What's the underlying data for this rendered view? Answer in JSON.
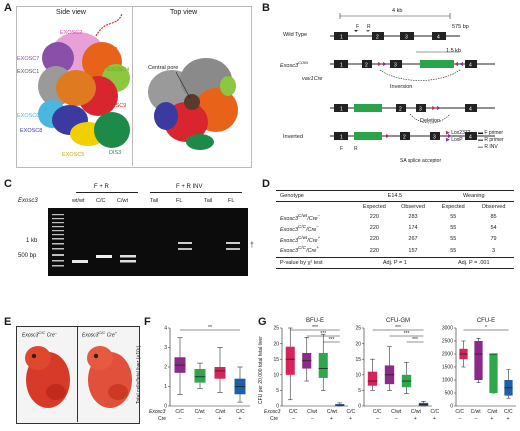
{
  "panels": {
    "A": {
      "letter": "A",
      "side_view": "Side view",
      "top_view": "Top view",
      "labels": {
        "exosc2": "EXOSC2",
        "exosc7": "EXOSC7",
        "exosc1": "EXOSC1",
        "exosc3": "EXOSC3",
        "exosc4": "EXOSC4",
        "exosc9": "EXOSC9",
        "exosc6": "EXOSC6",
        "exosc8": "EXOSC8",
        "exosc5": "EXOSC5",
        "dis3": "DIS3",
        "central_pore": "Central pore"
      },
      "colors": {
        "exosc2": "#e8a0d8",
        "exosc7": "#8a4fa8",
        "exosc1": "#9a9a9a",
        "exosc3": "#e8621a",
        "exosc4": "#8dc63f",
        "exosc9": "#d9262e",
        "exosc6": "#49b7e0",
        "exosc8": "#3a3aa0",
        "exosc5": "#f0d000",
        "dis3": "#1e8a4a"
      }
    },
    "B": {
      "letter": "B",
      "scale_4kb": "4 kb",
      "scale_575bp": "575 bp",
      "scale_15kb": "1.5 kb",
      "wild_type": "Wild Type",
      "coin_allele": "Exosc3",
      "coin_sup": "COIN",
      "vav_cre": "vav1Cre",
      "inversion": "Inversion",
      "deletion": "Deletion",
      "inverted": "Inverted",
      "sa": "SA",
      "exons": [
        "1",
        "2",
        "3",
        "4"
      ],
      "primer_f": "F",
      "primer_r": "R",
      "legend": {
        "lox2372": "Lox2372",
        "loxp": "LoxP",
        "f_primer": "F primer",
        "r_primer": "R primer",
        "r_inv": "R INV",
        "sa_acceptor": "SA splice acceptor"
      },
      "colors": {
        "lox2372": "#c0304a",
        "loxp": "#7a3a9a",
        "gfp": "#2aa34a"
      }
    },
    "C": {
      "letter": "C",
      "group_fr": "F + R",
      "group_frinv": "F + R INV",
      "row_label": "Exosc3",
      "lanes": [
        "wt/wt",
        "C/C",
        "C/wt",
        "Tail",
        "FL",
        "Tail",
        "FL"
      ],
      "marker_1kb": "1 kb",
      "marker_500bp": "500 bp",
      "dagger": "†"
    },
    "D": {
      "letter": "D",
      "headers": {
        "genotype": "Genotype",
        "e145": "E14.5",
        "weaning": "Weaning",
        "expected": "Expected",
        "observed": "Observed"
      },
      "rows": [
        {
          "genotype": "Exosc3",
          "sup": "C/wt",
          "cre": "/Cre",
          "cre_sup": "–",
          "e_exp": "220",
          "e_obs": "283",
          "w_exp": "55",
          "w_obs": "85"
        },
        {
          "genotype": "Exosc3",
          "sup": "C/C",
          "cre": "/Cre",
          "cre_sup": "–",
          "e_exp": "220",
          "e_obs": "174",
          "w_exp": "55",
          "w_obs": "54"
        },
        {
          "genotype": "Exosc3",
          "sup": "C/wt",
          "cre": "/Cre",
          "cre_sup": "+",
          "e_exp": "220",
          "e_obs": "267",
          "w_exp": "55",
          "w_obs": "79"
        },
        {
          "genotype": "Exosc3",
          "sup": "C/C",
          "cre": "/Cre",
          "cre_sup": "+",
          "e_exp": "220",
          "e_obs": "157",
          "w_exp": "55",
          "w_obs": "3"
        }
      ],
      "footer": {
        "label": "P-value by χ² test",
        "e_p": "Adj. P = 1",
        "w_p": "Adj. P = .001"
      }
    },
    "E": {
      "letter": "E",
      "left_label": "Exosc3",
      "left_sup": "C/C",
      "left_cre": "Cre",
      "left_cre_sup": "–",
      "right_label": "Exosc3",
      "right_sup": "C/C",
      "right_cre": "Cre",
      "right_cre_sup": "+"
    },
    "F": {
      "letter": "F",
      "ylabel": "Total cells/fetal liver (×10⁷)",
      "sig": "**",
      "row_exosc3": "Exosc3",
      "row_cre": "Cre",
      "genotypes": [
        "C/C",
        "C/wt",
        "C/wt",
        "C/C"
      ],
      "cre": [
        "–",
        "–",
        "+",
        "+"
      ]
    },
    "G": {
      "letter": "G",
      "ylabel": "CFU per 20,000 total fetal liver",
      "row_exosc3": "Exosc3",
      "row_cre": "Cre",
      "genotypes": [
        "C/C",
        "C/wt",
        "C/wt",
        "C/C"
      ],
      "cre": [
        "–",
        "–",
        "+",
        "+"
      ]
    }
  },
  "chart_data": [
    {
      "type": "box",
      "panel": "F",
      "ylabel": "Total cells/fetal liver (×10⁷)",
      "ylim": [
        0,
        4
      ],
      "yticks": [
        0,
        1,
        2,
        3,
        4
      ],
      "categories": [
        "C/C Cre–",
        "C/wt Cre–",
        "C/wt Cre+",
        "C/C Cre+"
      ],
      "colors": [
        "#8b2a88",
        "#2ea84a",
        "#d6245a",
        "#1f5fa8"
      ],
      "boxes": [
        {
          "min": 0.6,
          "q1": 1.7,
          "median": 2.1,
          "q3": 2.5,
          "max": 3.5
        },
        {
          "min": 0.9,
          "q1": 1.2,
          "median": 1.5,
          "q3": 1.9,
          "max": 2.2
        },
        {
          "min": 0.7,
          "q1": 1.4,
          "median": 1.8,
          "q3": 2.0,
          "max": 3.0
        },
        {
          "min": 0.2,
          "q1": 0.6,
          "median": 1.0,
          "q3": 1.4,
          "max": 2.0
        }
      ],
      "annotations": [
        {
          "from": 0,
          "to": 3,
          "label": "**"
        }
      ]
    },
    {
      "type": "box",
      "panel": "G",
      "title": "BFU-E",
      "ylim": [
        0,
        25
      ],
      "yticks": [
        0,
        5,
        10,
        15,
        20,
        25
      ],
      "categories": [
        "C/C Cre–",
        "C/wt Cre–",
        "C/wt Cre+",
        "C/C Cre+"
      ],
      "colors": [
        "#d6245a",
        "#8b2a88",
        "#2ea84a",
        "#1f5fa8"
      ],
      "boxes": [
        {
          "min": 2,
          "q1": 10,
          "median": 15,
          "q3": 19,
          "max": 25
        },
        {
          "min": 8,
          "q1": 12,
          "median": 14.5,
          "q3": 17,
          "max": 22
        },
        {
          "min": 5,
          "q1": 9,
          "median": 12,
          "q3": 17,
          "max": 23
        },
        {
          "min": 0,
          "q1": 0,
          "median": 0.3,
          "q3": 0.6,
          "max": 1
        }
      ],
      "annotations": [
        {
          "from": 0,
          "to": 3,
          "label": "***"
        },
        {
          "from": 1,
          "to": 3,
          "label": "***"
        },
        {
          "from": 2,
          "to": 3,
          "label": "***"
        }
      ]
    },
    {
      "type": "box",
      "panel": "G",
      "title": "CFU-GM",
      "ylim": [
        0,
        25
      ],
      "yticks": [
        0,
        5,
        10,
        15,
        20,
        25
      ],
      "categories": [
        "C/C Cre–",
        "C/wt Cre–",
        "C/wt Cre+",
        "C/C Cre+"
      ],
      "colors": [
        "#d6245a",
        "#8b2a88",
        "#2ea84a",
        "#1f5fa8"
      ],
      "boxes": [
        {
          "min": 5,
          "q1": 6.5,
          "median": 8,
          "q3": 11,
          "max": 15
        },
        {
          "min": 5,
          "q1": 7,
          "median": 10,
          "q3": 13,
          "max": 19
        },
        {
          "min": 4,
          "q1": 6,
          "median": 8,
          "q3": 10,
          "max": 14
        },
        {
          "min": 0,
          "q1": 0,
          "median": 0.5,
          "q3": 1,
          "max": 1.5
        }
      ],
      "annotations": [
        {
          "from": 0,
          "to": 3,
          "label": "***"
        },
        {
          "from": 1,
          "to": 3,
          "label": "***"
        },
        {
          "from": 2,
          "to": 3,
          "label": "***"
        }
      ]
    },
    {
      "type": "box",
      "panel": "G",
      "title": "CFU-E",
      "ylim": [
        0,
        3000
      ],
      "yticks": [
        0,
        500,
        1000,
        1500,
        2000,
        2500,
        3000
      ],
      "categories": [
        "C/C Cre–",
        "C/wt Cre–",
        "C/wt Cre+",
        "C/C Cre+"
      ],
      "colors": [
        "#d6245a",
        "#8b2a88",
        "#2ea84a",
        "#1f5fa8"
      ],
      "boxes": [
        {
          "min": 1500,
          "q1": 1800,
          "median": 2000,
          "q3": 2200,
          "max": 2500
        },
        {
          "min": 900,
          "q1": 1000,
          "median": 2000,
          "q3": 2500,
          "max": 2600
        },
        {
          "min": 500,
          "q1": 500,
          "median": 2000,
          "q3": 2000,
          "max": 2000
        },
        {
          "min": 300,
          "q1": 400,
          "median": 700,
          "q3": 1000,
          "max": 1400
        }
      ],
      "annotations": [
        {
          "from": 0,
          "to": 3,
          "label": "*"
        }
      ]
    }
  ]
}
